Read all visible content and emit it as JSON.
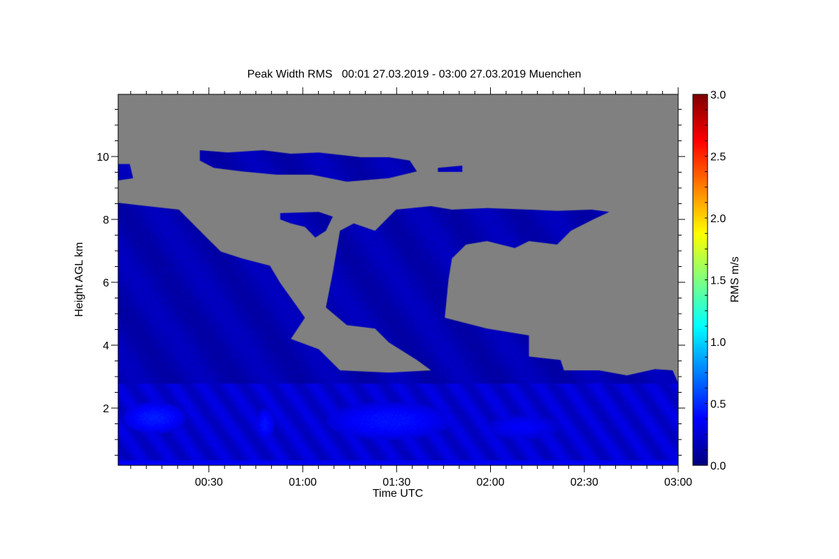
{
  "chart_data": {
    "type": "heatmap",
    "title": "Peak Width RMS   00:01 27.03.2019 - 03:00 27.03.2019 Muenchen",
    "xlabel": "Time UTC",
    "ylabel": "Height AGL km",
    "colorbar_label": "RMS m/s",
    "x_unit": "minutes after 00:00 UTC",
    "xlim": [
      1,
      180
    ],
    "ylim": [
      0.18,
      12
    ],
    "x_ticks": [
      {
        "v": 30,
        "label": "00:30"
      },
      {
        "v": 60,
        "label": "01:00"
      },
      {
        "v": 90,
        "label": "01:30"
      },
      {
        "v": 120,
        "label": "02:00"
      },
      {
        "v": 150,
        "label": "02:30"
      },
      {
        "v": 180,
        "label": "03:00"
      }
    ],
    "x_minor_step": 5,
    "y_ticks": [
      {
        "v": 2,
        "label": "2"
      },
      {
        "v": 4,
        "label": "4"
      },
      {
        "v": 6,
        "label": "6"
      },
      {
        "v": 8,
        "label": "8"
      },
      {
        "v": 10,
        "label": "10"
      }
    ],
    "y_minor_step": 0.5,
    "colorbar": {
      "range": [
        0,
        3
      ],
      "colormap": "jet",
      "ticks": [
        {
          "v": 0,
          "label": "0.0"
        },
        {
          "v": 0.5,
          "label": "0.5"
        },
        {
          "v": 1,
          "label": "1.0"
        },
        {
          "v": 1.5,
          "label": "1.5"
        },
        {
          "v": 2,
          "label": "2.0"
        },
        {
          "v": 2.5,
          "label": "2.5"
        },
        {
          "v": 3,
          "label": "3.0"
        }
      ],
      "minor_step": 0.125
    },
    "no_data_color": "#808080",
    "cloud_regions": [
      {
        "name": "main-cloud",
        "points": [
          [
            1,
            8.53
          ],
          [
            10.3,
            8.42
          ],
          [
            20.4,
            8.31
          ],
          [
            29.3,
            7.42
          ],
          [
            33.8,
            6.98
          ],
          [
            40.5,
            6.76
          ],
          [
            49.5,
            6.53
          ],
          [
            52.8,
            5.98
          ],
          [
            58.4,
            5.2
          ],
          [
            60.7,
            4.87
          ],
          [
            56.2,
            4.2
          ],
          [
            65.1,
            3.87
          ],
          [
            71.9,
            3.2
          ],
          [
            87.5,
            3.13
          ],
          [
            101,
            3.2
          ],
          [
            96.5,
            3.53
          ],
          [
            87.5,
            4.09
          ],
          [
            83.1,
            4.53
          ],
          [
            74.1,
            4.64
          ],
          [
            67.4,
            5.2
          ],
          [
            69.6,
            6.31
          ],
          [
            71.9,
            7.64
          ],
          [
            76.3,
            7.87
          ],
          [
            83.1,
            7.64
          ],
          [
            89.8,
            8.31
          ],
          [
            101,
            8.42
          ],
          [
            107.7,
            8.31
          ],
          [
            118.9,
            8.36
          ],
          [
            132.3,
            8.31
          ],
          [
            141.3,
            8.27
          ],
          [
            152.4,
            8.31
          ],
          [
            158,
            8.24
          ],
          [
            152.4,
            7.98
          ],
          [
            145.7,
            7.64
          ],
          [
            141.3,
            7.2
          ],
          [
            132.3,
            7.31
          ],
          [
            127.8,
            7.09
          ],
          [
            118.9,
            7.31
          ],
          [
            112.2,
            7.2
          ],
          [
            107.7,
            6.76
          ],
          [
            106.6,
            6.09
          ],
          [
            105.4,
            4.87
          ],
          [
            118.9,
            4.53
          ],
          [
            132.3,
            4.31
          ],
          [
            132.3,
            3.64
          ],
          [
            142.4,
            3.53
          ],
          [
            143.5,
            3.2
          ],
          [
            154.7,
            3.2
          ],
          [
            163.6,
            3.04
          ],
          [
            172.6,
            3.24
          ],
          [
            178.2,
            3.2
          ],
          [
            180,
            2.8
          ],
          [
            180,
            0.18
          ],
          [
            1,
            0.18
          ]
        ]
      },
      {
        "name": "mid-patch",
        "points": [
          [
            52.8,
            8.2
          ],
          [
            65.1,
            8.24
          ],
          [
            69.6,
            8.09
          ],
          [
            67.4,
            7.64
          ],
          [
            64,
            7.42
          ],
          [
            60.7,
            7.76
          ],
          [
            56.2,
            7.87
          ],
          [
            52.8,
            8.0
          ]
        ]
      },
      {
        "name": "cirrus-band",
        "points": [
          [
            27.1,
            10.2
          ],
          [
            36,
            10.13
          ],
          [
            47.2,
            10.2
          ],
          [
            56.2,
            10.09
          ],
          [
            65.1,
            10.13
          ],
          [
            78.6,
            9.98
          ],
          [
            87.5,
            9.98
          ],
          [
            94.2,
            9.87
          ],
          [
            96.5,
            9.53
          ],
          [
            87.5,
            9.31
          ],
          [
            74.1,
            9.2
          ],
          [
            62.9,
            9.42
          ],
          [
            51.7,
            9.42
          ],
          [
            40.5,
            9.53
          ],
          [
            31.6,
            9.64
          ],
          [
            27.1,
            9.87
          ]
        ]
      },
      {
        "name": "cirrus-left",
        "points": [
          [
            1,
            9.76
          ],
          [
            4.7,
            9.76
          ],
          [
            5.8,
            9.31
          ],
          [
            1,
            9.24
          ]
        ]
      },
      {
        "name": "cirrus-small",
        "points": [
          [
            103.2,
            9.64
          ],
          [
            111,
            9.71
          ],
          [
            111,
            9.51
          ],
          [
            103.2,
            9.51
          ]
        ]
      }
    ],
    "value_field": {
      "background_rms": 0.15,
      "boundary_layer": {
        "top_km": 2.8,
        "rms": 0.3
      },
      "surface_layer": {
        "top_km": 0.35,
        "rms": 0.35
      },
      "bright_patches": [
        {
          "t": 12.5,
          "h": 1.7,
          "dt": 10,
          "dh": 0.5,
          "rms": 0.45
        },
        {
          "t": 47.9,
          "h": 1.5,
          "dt": 3,
          "dh": 0.5,
          "rms": 0.42
        },
        {
          "t": 87.5,
          "h": 1.6,
          "dt": 20,
          "dh": 0.6,
          "rms": 0.42
        },
        {
          "t": 130,
          "h": 1.4,
          "dt": 12,
          "dh": 0.4,
          "rms": 0.36
        }
      ]
    }
  }
}
